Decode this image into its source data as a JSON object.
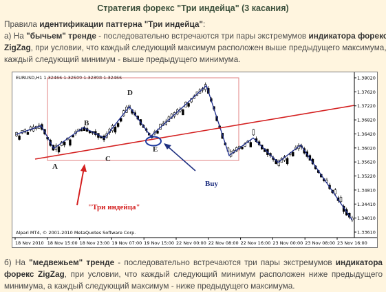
{
  "title": "Стратегия форекс \"Три индейца\" (3 касания)",
  "rules": {
    "prefix": "Правила ",
    "bold": "идентификации паттерна \"Три индейца\"",
    "suffix": ":"
  },
  "bullish": {
    "prefix": "а) На ",
    "trend_bold": "\"бычьем\" тренде",
    "mid": " - последовательно встречаются три пары экстремумов ",
    "indicator_bold": "индикатора форекс",
    "line2_bold": "ZigZag",
    "line2_rest": ", при условии, что каждый следующий максимум расположен выше предыдущего максимума, а",
    "line3": "каждый следующий минимум - выше предыдущего минимума."
  },
  "bearish": {
    "prefix": "б) На ",
    "trend_bold": "\"медвежьем\" тренде",
    "mid": " - последовательно встречаются три пары экстремумов ",
    "indicator_bold": "индикатора форекс ZigZag",
    "rest": ", при условии, что каждый следующий минимум расположен ниже предыдущего минимума, а каждый следующий максимум - ниже предыдущего максимума."
  },
  "chart": {
    "symbol_info": "EURUSD,H1  1.32466 1.32509 1.32398 1.32466",
    "watermark": "Alpari MT4, © 2001-2010 MetaQuotes Software Corp.",
    "pattern_label": "\"Три индейца\"",
    "buy_label": "Buy",
    "point_labels": [
      "A",
      "B",
      "C",
      "D",
      "E"
    ],
    "colors": {
      "zigzag": "#1b2b8c",
      "trendline": "#d42020",
      "box": "#e08080",
      "candles": "#000000",
      "circle": "#1e3aa0",
      "buy_arrow": "#1e2f80",
      "pattern_arrow": "#d42020"
    }
  },
  "chart_data": {
    "type": "candlestick",
    "symbol": "EURUSD",
    "timeframe": "H1",
    "y_ticks": [
      "1.38020",
      "1.37620",
      "1.37220",
      "1.36820",
      "1.36420",
      "1.36020",
      "1.35620",
      "1.35220",
      "1.34810",
      "1.34410",
      "1.34010",
      "1.33610"
    ],
    "x_ticks": [
      "18 Nov 2010",
      "18 Nov 15:00",
      "18 Nov 23:00",
      "19 Nov 07:00",
      "19 Nov 15:00",
      "22 Nov 00:00",
      "22 Nov 08:00",
      "22 Nov 16:00",
      "23 Nov 00:00",
      "23 Nov 08:00",
      "23 Nov 16:00"
    ],
    "ylim": [
      1.3361,
      1.3802
    ],
    "zigzag_points": [
      {
        "label": "",
        "price": 1.364
      },
      {
        "label": "",
        "price": 1.3665
      },
      {
        "label": "A",
        "price": 1.36
      },
      {
        "label": "B",
        "price": 1.366
      },
      {
        "label": "C",
        "price": 1.363
      },
      {
        "label": "D",
        "price": 1.372
      },
      {
        "label": "E",
        "price": 1.3635
      },
      {
        "label": "",
        "price": 1.378
      },
      {
        "label": "",
        "price": 1.358
      },
      {
        "label": "",
        "price": 1.363
      },
      {
        "label": "",
        "price": 1.356
      },
      {
        "label": "",
        "price": 1.361
      },
      {
        "label": "",
        "price": 1.3395
      }
    ]
  }
}
